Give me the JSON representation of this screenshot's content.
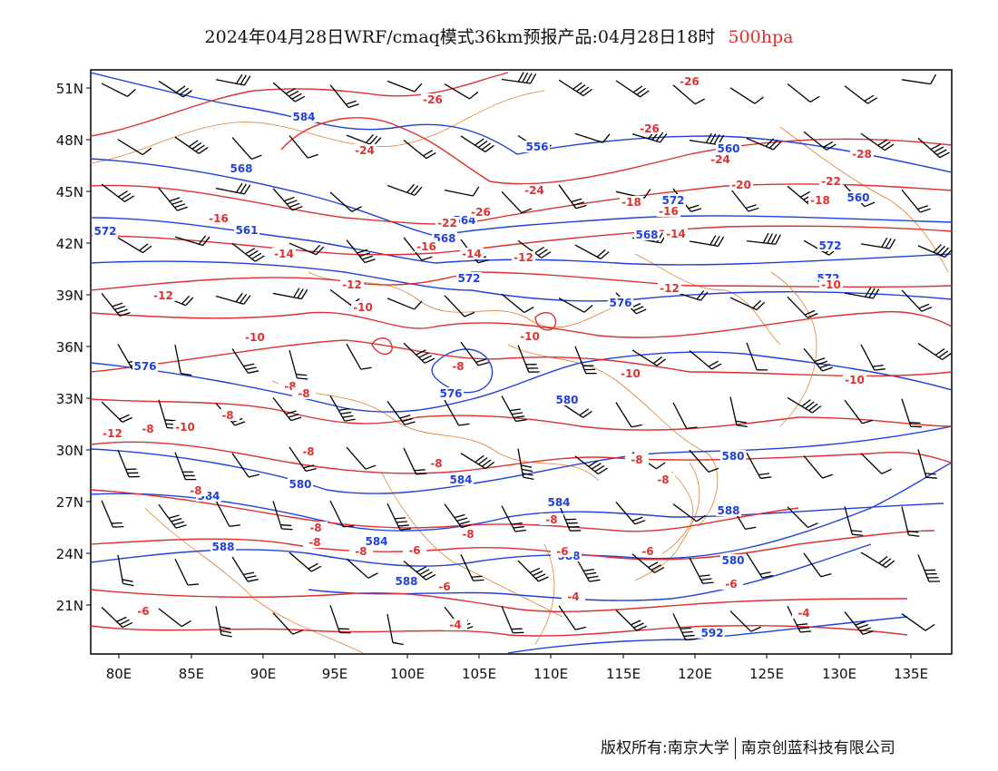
{
  "title": {
    "main": "2024年04月28日WRF/cmaq模式36km预报产品:04月28日18时",
    "level": "500hpa"
  },
  "axes": {
    "lat_labels": [
      "51N",
      "48N",
      "45N",
      "42N",
      "39N",
      "36N",
      "33N",
      "30N",
      "27N",
      "24N",
      "21N"
    ],
    "lon_labels": [
      "80E",
      "85E",
      "90E",
      "95E",
      "100E",
      "105E",
      "110E",
      "115E",
      "120E",
      "125E",
      "130E",
      "135E"
    ]
  },
  "colors": {
    "height_contour": "#2040e0",
    "temperature_contour": "#e03030",
    "boundary": "#e08030",
    "wind_barb": "#000000"
  },
  "height_labels": [
    "584",
    "556",
    "568",
    "560",
    "564",
    "572",
    "572",
    "561",
    "568",
    "568",
    "572",
    "576",
    "572",
    "576",
    "580",
    "576",
    "580",
    "584",
    "580",
    "584",
    "584",
    "584",
    "588",
    "588",
    "588",
    "588",
    "592",
    "560",
    "580",
    "572"
  ],
  "temperature_labels": [
    "-26",
    "-26",
    "-26",
    "-28",
    "-24",
    "-24",
    "-24",
    "-20",
    "-22",
    "-26",
    "-22",
    "-18",
    "-18",
    "-16",
    "-16",
    "-14",
    "-14",
    "-16",
    "-14",
    "-12",
    "-12",
    "-12",
    "-12",
    "-10",
    "-10",
    "-10",
    "-10",
    "-10",
    "-10",
    "-8",
    "-8",
    "-8",
    "-8",
    "-12",
    "-10",
    "-8",
    "-8",
    "-8",
    "-8",
    "-8",
    "-8",
    "-8",
    "-6",
    "-8",
    "-8",
    "-6",
    "-6",
    "-6",
    "-4",
    "-4",
    "-4",
    "-6",
    "-8",
    "-8",
    "-6"
  ],
  "footer": {
    "copyright": "版权所有:南京大学",
    "company": "南京创蓝科技有限公司"
  }
}
